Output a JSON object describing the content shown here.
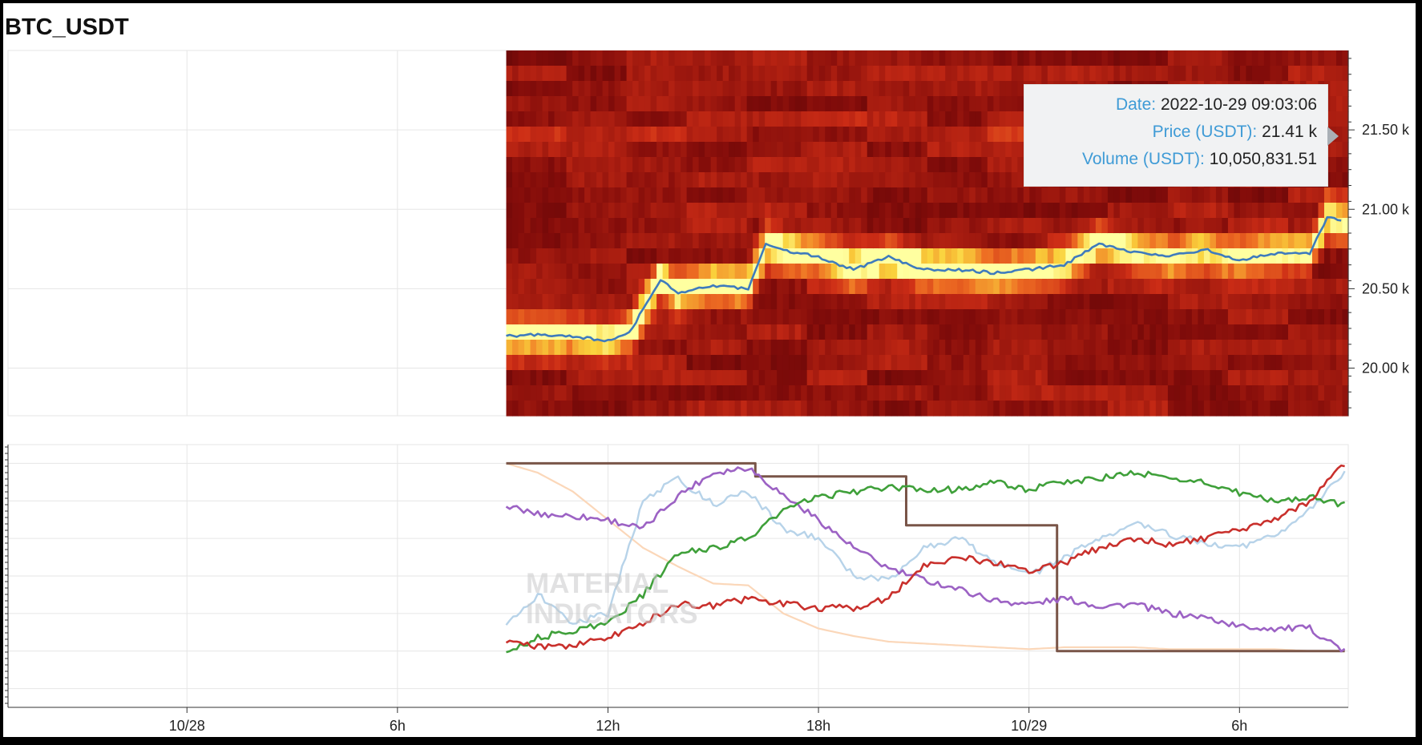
{
  "title": "BTC_USDT",
  "tooltip": {
    "date_label": "Date:",
    "date_value": "2022-10-29 09:03:06",
    "price_label": "Price (USDT):",
    "price_value": "21.41 k",
    "volume_label": "Volume (USDT):",
    "volume_value": "10,050,831.51"
  },
  "watermark": {
    "line1": "MATERIAL",
    "line2": "INDICATORS"
  },
  "chart_data": [
    {
      "type": "heatmap",
      "title": "BTC_USDT",
      "yunit": "USDT",
      "y_ticks": [
        "21.50 k",
        "21.00 k",
        "20.50 k",
        "20.00 k"
      ],
      "y_tick_values": [
        21500,
        21000,
        20500,
        20000
      ],
      "ylim": [
        19700,
        22000
      ],
      "x_ticks": [
        "10/28",
        "6h",
        "12h",
        "18h",
        "10/29",
        "6h"
      ],
      "x_tick_hours": [
        0,
        6,
        12,
        18,
        24,
        30
      ],
      "xlim": [
        -5.1,
        33.1
      ],
      "data_start_hour": 9.1,
      "data_end_hour": 33.1,
      "price_line_color": "#3e7bbd",
      "price_series": {
        "hours": [
          9.1,
          10.0,
          11.0,
          12.0,
          12.6,
          13.0,
          13.5,
          14.0,
          15.0,
          16.0,
          16.5,
          17.0,
          18.0,
          19.0,
          20.0,
          21.0,
          22.0,
          23.0,
          24.0,
          25.0,
          26.0,
          27.0,
          28.0,
          29.0,
          30.0,
          31.0,
          32.0,
          32.5,
          33.0
        ],
        "price": [
          20200,
          20210,
          20200,
          20170,
          20220,
          20370,
          20560,
          20470,
          20520,
          20500,
          20780,
          20740,
          20700,
          20620,
          20700,
          20620,
          20620,
          20600,
          20620,
          20650,
          20780,
          20730,
          20700,
          20750,
          20680,
          20720,
          20720,
          20950,
          20920
        ]
      }
    },
    {
      "type": "line",
      "x_ticks": [
        "10/28",
        "6h",
        "12h",
        "18h",
        "10/29",
        "6h"
      ],
      "x_tick_hours": [
        0,
        6,
        12,
        18,
        24,
        30
      ],
      "xlim": [
        -5.1,
        33.1
      ],
      "ylim": [
        -0.3,
        1.1
      ],
      "series": [
        {
          "color": "#795548",
          "x": [
            9.1,
            16.2,
            16.2,
            20.5,
            20.5,
            24.8,
            24.8,
            33.0
          ],
          "values": [
            1.0,
            1.0,
            0.93,
            0.93,
            0.67,
            0.67,
            0.0,
            0.0
          ]
        },
        {
          "color": "#9c62c4",
          "x": [
            9.1,
            10,
            11,
            12,
            13,
            14,
            15,
            16,
            17,
            18,
            19,
            20,
            21,
            22,
            23,
            24,
            25,
            26,
            27,
            28,
            29,
            30,
            31,
            32,
            33
          ],
          "values": [
            0.77,
            0.73,
            0.72,
            0.7,
            0.65,
            0.83,
            0.95,
            0.98,
            0.83,
            0.7,
            0.55,
            0.44,
            0.38,
            0.33,
            0.27,
            0.25,
            0.28,
            0.24,
            0.25,
            0.2,
            0.18,
            0.13,
            0.12,
            0.12,
            0.0
          ]
        },
        {
          "color": "#3fa03a",
          "x": [
            9.1,
            10,
            11,
            12,
            13,
            14,
            15,
            16,
            17,
            18,
            19,
            20,
            21,
            22,
            23,
            24,
            25,
            26,
            27,
            28,
            29,
            30,
            31,
            32,
            33
          ],
          "values": [
            0.0,
            0.07,
            0.11,
            0.15,
            0.3,
            0.52,
            0.55,
            0.6,
            0.75,
            0.82,
            0.85,
            0.87,
            0.86,
            0.86,
            0.9,
            0.86,
            0.9,
            0.92,
            0.95,
            0.92,
            0.9,
            0.84,
            0.8,
            0.82,
            0.78
          ]
        },
        {
          "color": "#c9302c",
          "x": [
            9.1,
            10,
            11,
            12,
            13,
            14,
            15,
            16,
            17,
            18,
            19,
            20,
            21,
            22,
            23,
            24,
            25,
            26,
            27,
            28,
            29,
            30,
            31,
            32,
            33
          ],
          "values": [
            0.05,
            0.02,
            0.03,
            0.07,
            0.15,
            0.25,
            0.24,
            0.28,
            0.25,
            0.23,
            0.23,
            0.28,
            0.46,
            0.5,
            0.47,
            0.43,
            0.47,
            0.55,
            0.6,
            0.57,
            0.6,
            0.64,
            0.7,
            0.8,
            1.0
          ]
        },
        {
          "color": "#b7d3e9",
          "x": [
            9.1,
            10,
            11,
            12,
            13,
            14,
            15,
            16,
            17,
            18,
            19,
            20,
            21,
            22,
            23,
            24,
            25,
            26,
            27,
            28,
            29,
            30,
            31,
            32,
            33
          ],
          "values": [
            0.15,
            0.3,
            0.15,
            0.2,
            0.8,
            0.92,
            0.78,
            0.85,
            0.65,
            0.6,
            0.4,
            0.38,
            0.55,
            0.6,
            0.48,
            0.4,
            0.5,
            0.6,
            0.68,
            0.62,
            0.58,
            0.55,
            0.62,
            0.75,
            0.95
          ]
        },
        {
          "color": "#fbd7b9",
          "x": [
            9.1,
            10,
            11,
            12,
            13,
            14,
            15,
            16,
            17,
            18,
            19,
            20,
            21,
            22,
            23,
            24,
            25,
            26,
            27,
            28,
            29,
            30,
            31,
            32,
            33
          ],
          "values": [
            1.0,
            0.95,
            0.85,
            0.7,
            0.55,
            0.45,
            0.36,
            0.35,
            0.2,
            0.12,
            0.08,
            0.05,
            0.04,
            0.03,
            0.02,
            0.01,
            0.02,
            0.02,
            0.02,
            0.01,
            0.01,
            0.01,
            0.01,
            0.0,
            0.0
          ]
        }
      ]
    }
  ]
}
